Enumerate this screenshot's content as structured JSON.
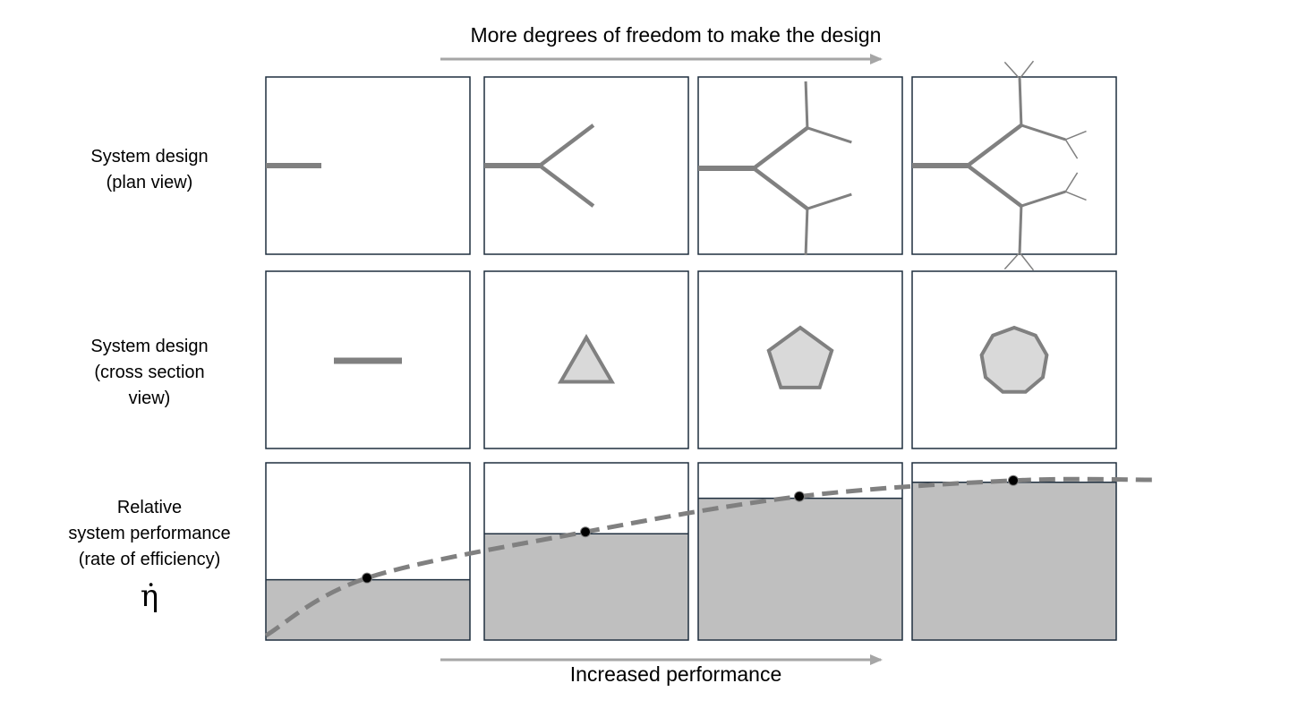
{
  "header": {
    "title": "More degrees of freedom to make the design"
  },
  "footer": {
    "title": "Increased performance"
  },
  "rows": {
    "plan_view": {
      "line1": "System design",
      "line2": "(plan view)"
    },
    "cross_section": {
      "line1": "System design",
      "line2": "(cross section",
      "line3": "view)"
    },
    "performance": {
      "line1": "Relative",
      "line2": "system performance",
      "line3": "(rate of efficiency)",
      "symbol": "η̇"
    }
  },
  "panels": {
    "count": 4,
    "cross_section_shapes": [
      "line",
      "triangle",
      "pentagon",
      "nonagon"
    ],
    "branching_levels": [
      0,
      1,
      2,
      3
    ],
    "relative_performance": [
      0.34,
      0.6,
      0.8,
      0.89
    ]
  },
  "colors": {
    "panel_border": "#1f2f3f",
    "branch": "#808080",
    "shape_fill": "#d9d9d9",
    "shape_stroke": "#808080",
    "bar_fill": "#bfbfbf",
    "curve": "#808080",
    "arrow": "#a6a6a6",
    "marker": "#000000"
  }
}
